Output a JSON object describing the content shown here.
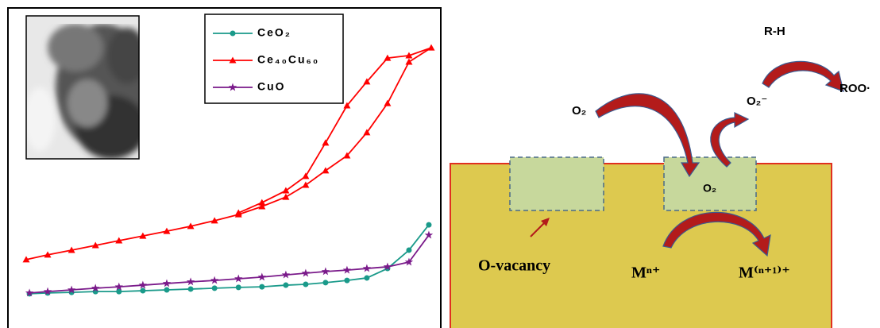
{
  "chart_data": {
    "type": "line",
    "xlim": [
      0,
      1
    ],
    "ylim": [
      0,
      100
    ],
    "series": [
      {
        "name": "CeO₂",
        "color": "#1a9a8a",
        "marker": "circle",
        "x": [
          0.008,
          0.053,
          0.112,
          0.171,
          0.229,
          0.288,
          0.347,
          0.406,
          0.465,
          0.524,
          0.582,
          0.641,
          0.69,
          0.739,
          0.792,
          0.841,
          0.892,
          0.945,
          0.994
        ],
        "values": [
          8.6,
          8.9,
          9.1,
          9.4,
          9.4,
          9.7,
          10,
          10.3,
          10.6,
          10.9,
          11.1,
          11.7,
          12,
          12.6,
          13.4,
          14.3,
          17.7,
          24.3,
          33.4
        ]
      },
      {
        "name": "Ce₄₀Cu₆₀",
        "color": "#ff0000",
        "marker": "triangle",
        "x": [
          0,
          0.053,
          0.112,
          0.171,
          0.229,
          0.288,
          0.347,
          0.406,
          0.465,
          0.524,
          0.582,
          0.641,
          0.69,
          0.739,
          0.792,
          0.841,
          0.892,
          0.945,
          1,
          0.945,
          0.892,
          0.841,
          0.792,
          0.739,
          0.69,
          0.641,
          0.582,
          0.524
        ],
        "values": [
          20.9,
          22.6,
          24.3,
          26,
          27.7,
          29.4,
          31.1,
          32.9,
          34.9,
          37.1,
          40,
          43.4,
          47.7,
          52.9,
          58.3,
          66.6,
          77.1,
          92,
          97.1,
          94.3,
          93.4,
          84.9,
          76.3,
          62.9,
          50.9,
          45.7,
          41.4,
          37.7
        ]
      },
      {
        "name": "CuO",
        "color": "#7a1a8a",
        "marker": "star",
        "x": [
          0.008,
          0.053,
          0.112,
          0.171,
          0.229,
          0.288,
          0.347,
          0.406,
          0.465,
          0.524,
          0.582,
          0.641,
          0.69,
          0.739,
          0.792,
          0.841,
          0.892,
          0.945,
          0.994
        ],
        "values": [
          8.9,
          9.4,
          10,
          10.6,
          11.1,
          11.7,
          12.3,
          12.9,
          13.4,
          14,
          14.6,
          15.4,
          16,
          16.6,
          17.1,
          17.7,
          18.3,
          20,
          29.7
        ]
      }
    ]
  },
  "diagram": {
    "reactant": "R-H",
    "product": "ROO·",
    "oxygen": "O₂",
    "superoxide": "O₂⁻",
    "adsorbed_oxygen": "O₂",
    "vacancy": "O-vacancy",
    "metal_ion": "Mⁿ⁺",
    "oxidized_metal_ion": "M⁽ⁿ⁺¹⁾⁺"
  }
}
